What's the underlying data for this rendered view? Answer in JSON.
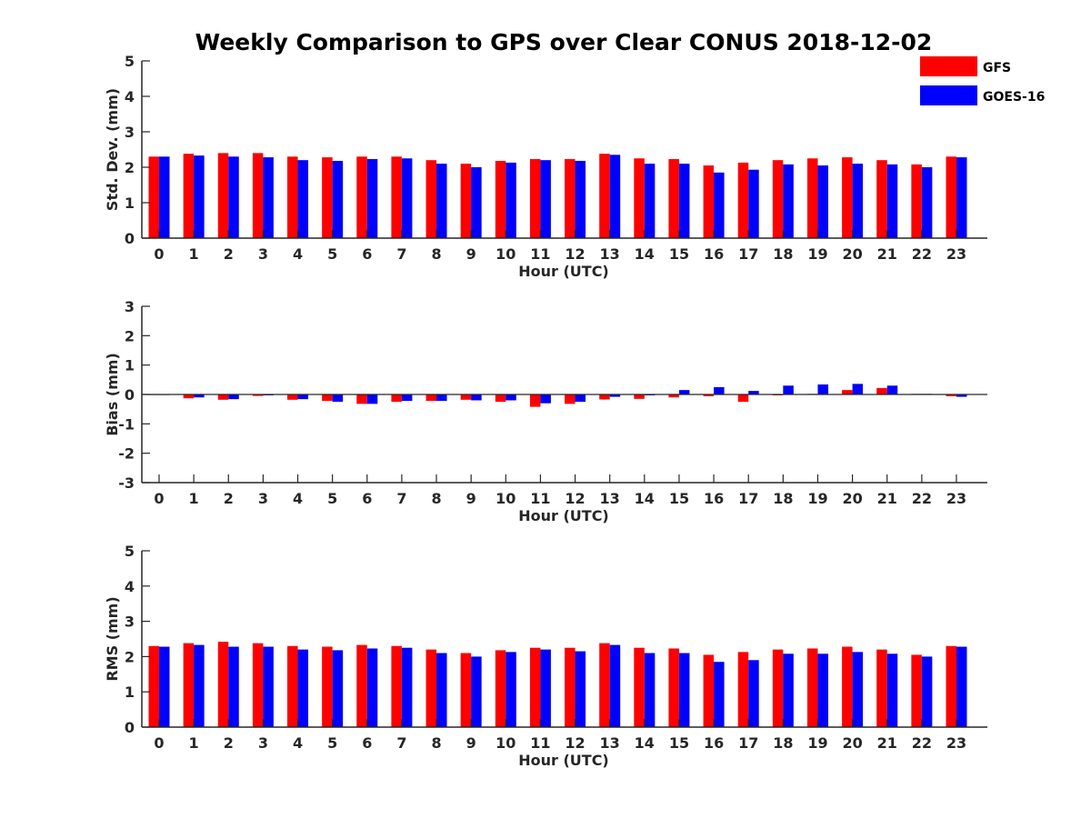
{
  "title": "Weekly Comparison to GPS over Clear CONUS 2018-12-02",
  "colors": {
    "GFS": "#ff0000",
    "GOES-16": "#0000ff",
    "axis": "#262626"
  },
  "legend": {
    "position": "top-right",
    "entries": [
      {
        "label": "GFS",
        "color": "#ff0000"
      },
      {
        "label": "GOES-16",
        "color": "#0000ff"
      }
    ]
  },
  "chart_data": [
    {
      "type": "bar",
      "xlabel": "Hour (UTC)",
      "ylabel": "Std. Dev. (mm)",
      "ylim": [
        0,
        5
      ],
      "yticks": [
        0,
        1,
        2,
        3,
        4,
        5
      ],
      "categories": [
        "0",
        "1",
        "2",
        "3",
        "4",
        "5",
        "6",
        "7",
        "8",
        "9",
        "10",
        "11",
        "12",
        "13",
        "14",
        "15",
        "16",
        "17",
        "18",
        "19",
        "20",
        "21",
        "22",
        "23"
      ],
      "series": [
        {
          "name": "GFS",
          "values": [
            2.3,
            2.38,
            2.4,
            2.4,
            2.3,
            2.28,
            2.3,
            2.3,
            2.2,
            2.1,
            2.18,
            2.23,
            2.23,
            2.38,
            2.25,
            2.23,
            2.05,
            2.13,
            2.2,
            2.25,
            2.28,
            2.2,
            2.08,
            2.3
          ]
        },
        {
          "name": "GOES-16",
          "values": [
            2.3,
            2.33,
            2.3,
            2.28,
            2.2,
            2.18,
            2.23,
            2.25,
            2.1,
            2.0,
            2.13,
            2.2,
            2.18,
            2.35,
            2.1,
            2.1,
            1.85,
            1.93,
            2.08,
            2.05,
            2.1,
            2.08,
            2.0,
            2.28
          ]
        }
      ],
      "grid": false
    },
    {
      "type": "bar",
      "xlabel": "Hour (UTC)",
      "ylabel": "Bias (mm)",
      "ylim": [
        -3,
        3
      ],
      "yticks": [
        -3,
        -2,
        -1,
        0,
        1,
        2,
        3
      ],
      "categories": [
        "0",
        "1",
        "2",
        "3",
        "4",
        "5",
        "6",
        "7",
        "8",
        "9",
        "10",
        "11",
        "12",
        "13",
        "14",
        "15",
        "16",
        "17",
        "18",
        "19",
        "20",
        "21",
        "22",
        "23"
      ],
      "series": [
        {
          "name": "GFS",
          "values": [
            -0.02,
            -0.13,
            -0.18,
            -0.05,
            -0.18,
            -0.22,
            -0.32,
            -0.25,
            -0.22,
            -0.18,
            -0.25,
            -0.42,
            -0.32,
            -0.17,
            -0.15,
            -0.1,
            -0.06,
            -0.25,
            -0.03,
            0.02,
            0.15,
            0.22,
            0.02,
            -0.06
          ]
        },
        {
          "name": "GOES-16",
          "values": [
            -0.02,
            -0.1,
            -0.16,
            -0.03,
            -0.16,
            -0.25,
            -0.32,
            -0.22,
            -0.22,
            -0.2,
            -0.2,
            -0.3,
            -0.25,
            -0.08,
            -0.03,
            0.15,
            0.25,
            0.12,
            0.3,
            0.34,
            0.36,
            0.3,
            0.02,
            -0.08
          ]
        }
      ],
      "grid": false
    },
    {
      "type": "bar",
      "xlabel": "Hour (UTC)",
      "ylabel": "RMS (mm)",
      "ylim": [
        0,
        5
      ],
      "yticks": [
        0,
        1,
        2,
        3,
        4,
        5
      ],
      "categories": [
        "0",
        "1",
        "2",
        "3",
        "4",
        "5",
        "6",
        "7",
        "8",
        "9",
        "10",
        "11",
        "12",
        "13",
        "14",
        "15",
        "16",
        "17",
        "18",
        "19",
        "20",
        "21",
        "22",
        "23"
      ],
      "series": [
        {
          "name": "GFS",
          "values": [
            2.3,
            2.38,
            2.42,
            2.38,
            2.3,
            2.28,
            2.33,
            2.3,
            2.2,
            2.1,
            2.18,
            2.25,
            2.25,
            2.38,
            2.25,
            2.23,
            2.05,
            2.13,
            2.2,
            2.23,
            2.28,
            2.2,
            2.05,
            2.3
          ]
        },
        {
          "name": "GOES-16",
          "values": [
            2.28,
            2.33,
            2.28,
            2.28,
            2.2,
            2.18,
            2.23,
            2.25,
            2.1,
            2.0,
            2.13,
            2.2,
            2.15,
            2.33,
            2.1,
            2.1,
            1.85,
            1.9,
            2.08,
            2.08,
            2.13,
            2.08,
            2.0,
            2.28
          ]
        }
      ],
      "grid": false
    }
  ]
}
